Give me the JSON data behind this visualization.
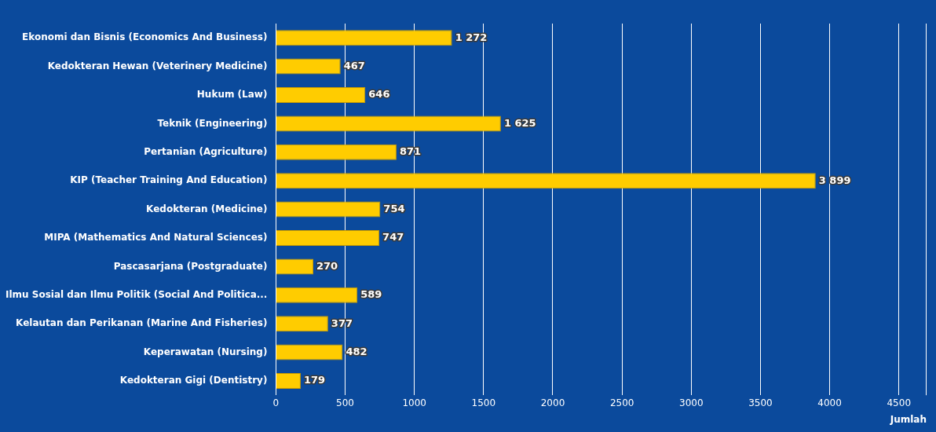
{
  "chart_data": {
    "type": "bar",
    "orientation": "horizontal",
    "categories": [
      "Ekonomi dan Bisnis (Economics And Business)",
      "Kedokteran Hewan (Veterinery Medicine)",
      "Hukum (Law)",
      "Teknik (Engineering)",
      "Pertanian (Agriculture)",
      "KIP (Teacher Training And Education)",
      "Kedokteran (Medicine)",
      "MIPA (Mathematics And Natural Sciences)",
      "Pascasarjana (Postgraduate)",
      "Ilmu Sosial dan Ilmu Politik (Social And Politica...",
      "Kelautan dan Perikanan (Marine And Fisheries)",
      "Keperawatan (Nursing)",
      "Kedokteran Gigi (Dentistry)"
    ],
    "values": [
      1272,
      467,
      646,
      1625,
      871,
      3899,
      754,
      747,
      270,
      589,
      377,
      482,
      179
    ],
    "value_labels": [
      "1 272",
      "467",
      "646",
      "1 625",
      "871",
      "3 899",
      "754",
      "747",
      "270",
      "589",
      "377",
      "482",
      "179"
    ],
    "color": "#ffcc00",
    "xlabel": "Jumlah",
    "xlim": [
      0,
      4700
    ],
    "xticks": [
      0,
      500,
      1000,
      1500,
      2000,
      2500,
      3000,
      3500,
      4000,
      4500
    ],
    "grid": "x",
    "legend": false
  }
}
